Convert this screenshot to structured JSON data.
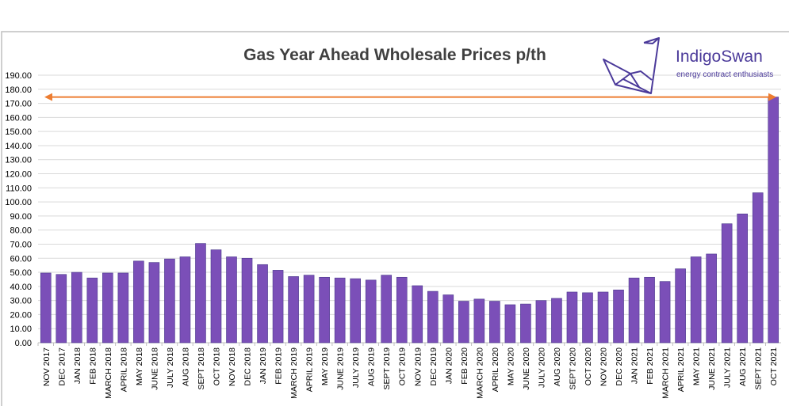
{
  "chart_data": {
    "type": "bar",
    "title": "Gas Year Ahead Wholesale Prices p/th",
    "xlabel": "",
    "ylabel": "",
    "ylim": [
      0,
      190
    ],
    "ytick_step": 10,
    "grid": true,
    "bar_color": "#7b4fb8",
    "arrow_color": "#ed7d31",
    "arrow_level": 174.5,
    "categories": [
      "NOV 2017",
      "DEC 2017",
      "JAN 2018",
      "FEB 2018",
      "MARCH 2018",
      "APRIL 2018",
      "MAY 2018",
      "JUNE 2018",
      "JULY 2018",
      "AUG 2018",
      "SEPT 2018",
      "OCT 2018",
      "NOV 2018",
      "DEC 2018",
      "JAN 2019",
      "FEB 2019",
      "MARCH 2019",
      "APRIL 2019",
      "MAY 2019",
      "JUNE 2019",
      "JULY 2019",
      "AUG 2019",
      "SEPT 2019",
      "OCT 2019",
      "NOV 2019",
      "DEC 2019",
      "JAN 2020",
      "FEB 2020",
      "MARCH 2020",
      "APRIL 2020",
      "MAY 2020",
      "JUNE 2020",
      "JULY 2020",
      "AUG 2020",
      "SEPT 2020",
      "OCT 2020",
      "NOV 2020",
      "DEC 2020",
      "JAN 2021",
      "FEB 2021",
      "MARCH 2021",
      "APRIL 2021",
      "MAY 2021",
      "JUNE 2021",
      "JULY 2021",
      "AUG 2021",
      "SEPT 2021",
      "OCT 2021"
    ],
    "values": [
      49.5,
      48.5,
      50,
      46,
      49.5,
      49.5,
      58,
      57,
      59.5,
      61,
      70.5,
      66,
      61,
      60,
      55.5,
      51.5,
      47,
      48,
      46.5,
      46,
      45.5,
      44.5,
      48,
      46.5,
      40.5,
      36.5,
      34,
      29.5,
      31,
      29.5,
      27,
      27.5,
      30,
      31.5,
      36,
      35.5,
      36,
      37.5,
      46,
      46.5,
      43.5,
      52.5,
      61,
      63,
      84.5,
      91.5,
      106.5,
      174.5
    ]
  },
  "logo": {
    "name": "IndigoSwan",
    "tagline": "energy contract enthusiasts",
    "color": "#4b3a9a"
  }
}
